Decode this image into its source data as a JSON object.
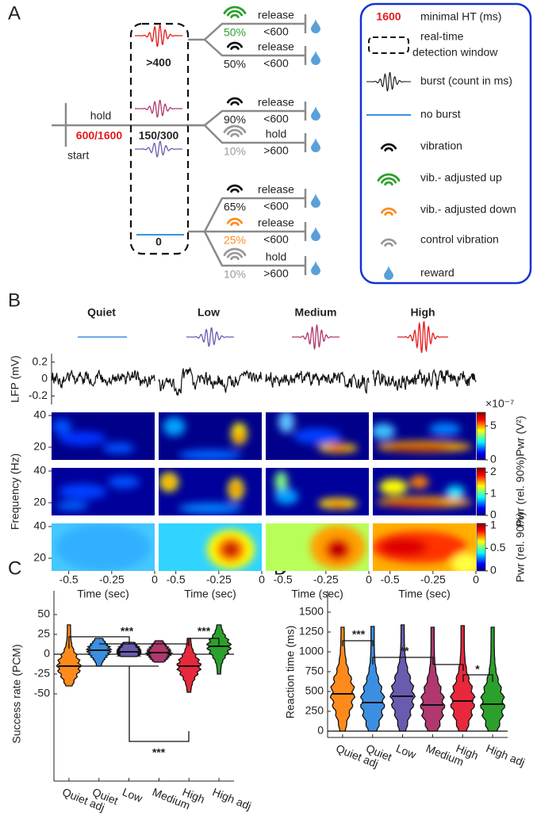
{
  "panel_a": {
    "label": "A",
    "hold": "hold",
    "start": "start",
    "hold_times": "600/1600",
    "window": [
      ">400",
      "150/300",
      "0"
    ],
    "branches": [
      {
        "percent": "50%",
        "action": "release",
        "limit": "<600"
      },
      {
        "percent": "50%",
        "action": "release",
        "limit": "<600"
      },
      {
        "percent": "90%",
        "action": "release",
        "limit": "<600"
      },
      {
        "percent": "10%",
        "action": "hold",
        "limit": ">600"
      },
      {
        "percent": "65%",
        "action": "release",
        "limit": "<600"
      },
      {
        "percent": "25%",
        "action": "release",
        "limit": "<600"
      },
      {
        "percent": "10%",
        "action": "hold",
        "limit": ">600"
      }
    ],
    "legend": {
      "ht_value": "1600",
      "ht_label": "minimal HT (ms)",
      "window_label": [
        "real-time",
        "detection window"
      ],
      "burst": "burst (count in ms)",
      "no_burst": "no burst",
      "vibration": "vibration",
      "vib_up": "vib.- adjusted up",
      "vib_down": "vib.- adjusted down",
      "control": "control vibration",
      "reward": "reward"
    }
  },
  "panel_b": {
    "label": "B",
    "conditions": [
      "Quiet",
      "Low",
      "Medium",
      "High"
    ],
    "lfp": {
      "ylabel": "LFP (mV)",
      "ylim": [
        -0.3,
        0.3
      ],
      "yticks": [
        0.2,
        0,
        -0.2
      ]
    },
    "freq": {
      "ylabel": "Frequency (Hz)",
      "ylim": [
        12,
        42
      ],
      "yticks": [
        40,
        20
      ]
    },
    "xlabel": "Time (sec)",
    "xlim": [
      -0.6,
      0
    ],
    "xticks": [
      -0.5,
      -0.25,
      0
    ],
    "colorbars": [
      {
        "label": "Pwr (V²)",
        "scale": "×10⁻⁷",
        "clim": [
          0,
          7
        ],
        "ticks": [
          5,
          0
        ]
      },
      {
        "label": "Pwr (rel. 90%)",
        "clim": [
          0,
          2.2
        ],
        "ticks": [
          2,
          1,
          0
        ]
      },
      {
        "label": "Pwr (rel. 90%)",
        "clim": [
          0,
          1.05
        ],
        "ticks": [
          1,
          0.5,
          0
        ]
      }
    ]
  },
  "chart_data": [
    {
      "type": "violin",
      "label": "C",
      "ylabel": "Success rate (PCM)",
      "categories": [
        "Quiet adj",
        "Quiet",
        "Low",
        "Medium",
        "High",
        "High adj"
      ],
      "colors": [
        "#ff8a1c",
        "#3c8fe0",
        "#6b5bb0",
        "#b0386e",
        "#e8283c",
        "#2ca02c"
      ],
      "medians": [
        -15,
        5,
        3,
        2,
        -15,
        10
      ],
      "mins": [
        -40,
        -15,
        -3,
        -10,
        -48,
        -25
      ],
      "maxs": [
        37,
        20,
        15,
        17,
        20,
        37
      ],
      "ylim": [
        -160,
        80
      ],
      "yticks": [
        50,
        25,
        0,
        -25,
        -50
      ],
      "annotations": [
        "***",
        "***",
        "***"
      ]
    },
    {
      "type": "violin",
      "label": "D",
      "ylabel": "Reaction time (ms)",
      "categories": [
        "Quiet adj",
        "Quiet",
        "Low",
        "Medium",
        "High",
        "High adj"
      ],
      "colors": [
        "#ff8a1c",
        "#3c8fe0",
        "#6b5bb0",
        "#b0386e",
        "#e8283c",
        "#2ca02c"
      ],
      "medians": [
        470,
        360,
        440,
        330,
        380,
        340
      ],
      "mins": [
        0,
        0,
        0,
        0,
        0,
        0
      ],
      "maxs": [
        1310,
        1320,
        1340,
        1310,
        1330,
        1310
      ],
      "ylim": [
        -80,
        1770
      ],
      "yticks": [
        1500,
        1250,
        1000,
        750,
        500,
        250,
        0
      ],
      "annotations": [
        "***",
        "**",
        "*"
      ]
    }
  ]
}
